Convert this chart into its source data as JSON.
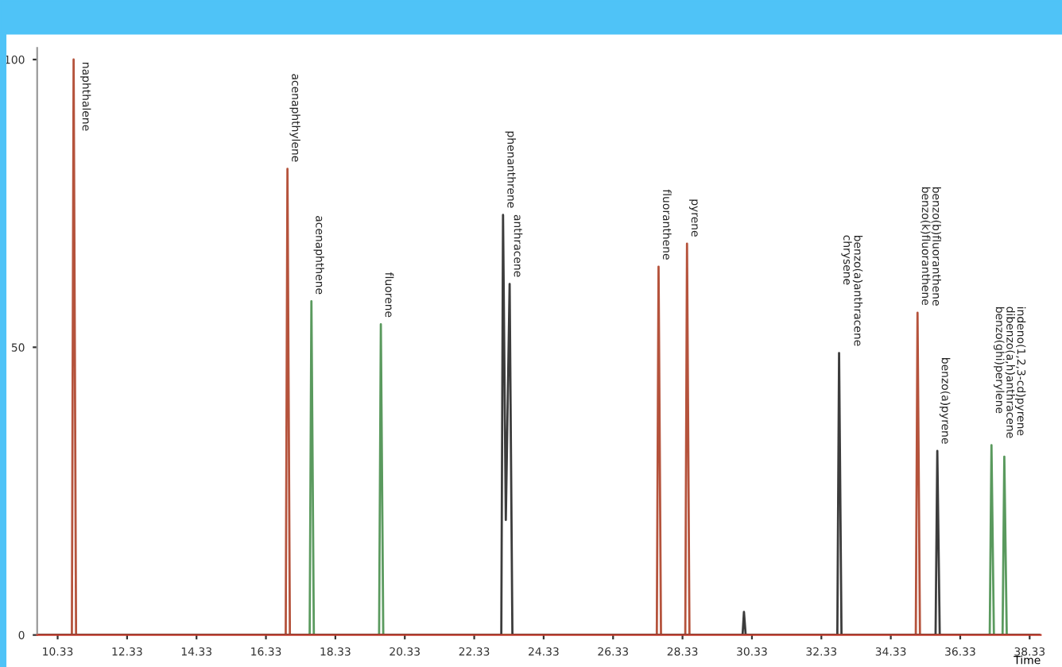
{
  "chart_data": {
    "type": "line",
    "xlabel": "Time",
    "series": [
      {
        "color": "#b5533c",
        "x": [
          9.8,
          10.74,
          10.79,
          10.86,
          16.9,
          16.95,
          17.02,
          27.59,
          27.64,
          27.71,
          28.41,
          28.46,
          28.53,
          35.05,
          35.1,
          35.17,
          38.6
        ],
        "values": [
          0,
          0,
          100,
          0,
          0,
          81,
          0,
          0,
          64,
          0,
          0,
          68,
          0,
          0,
          56,
          0,
          0
        ]
      },
      {
        "color": "#5a9a5e",
        "x": [
          9.8,
          17.59,
          17.64,
          17.71,
          19.59,
          19.64,
          19.71,
          37.18,
          37.23,
          37.3,
          37.55,
          37.6,
          37.67,
          38.6
        ],
        "values": [
          0,
          0,
          58,
          0,
          0,
          54,
          0,
          0,
          33,
          0,
          0,
          31,
          0,
          0
        ]
      },
      {
        "color": "#3c3c3c",
        "x": [
          9.8,
          23.11,
          23.16,
          23.24,
          23.35,
          23.43,
          30.06,
          30.1,
          30.15,
          32.79,
          32.84,
          32.91,
          35.62,
          35.67,
          35.74,
          38.6
        ],
        "values": [
          0,
          0,
          73,
          20,
          61,
          0,
          0,
          4,
          0,
          0,
          49,
          0,
          0,
          32,
          0,
          0
        ]
      }
    ],
    "annotations": [
      {
        "text": "naphthalene",
        "x": 10.79,
        "y": 100
      },
      {
        "text": "acenaphthylene",
        "x": 16.95,
        "y": 81
      },
      {
        "text": "acenaphthene",
        "x": 17.64,
        "y": 58
      },
      {
        "text": "fluorene",
        "x": 19.64,
        "y": 54
      },
      {
        "text": "phenanthrene",
        "x": 23.16,
        "y": 73
      },
      {
        "text": "anthracene",
        "x": 23.35,
        "y": 61
      },
      {
        "text": "fluoranthene",
        "x": 27.64,
        "y": 64
      },
      {
        "text": "pyrene",
        "x": 28.46,
        "y": 68
      },
      {
        "text": "benzo(a)anthracene\nchrysene",
        "x": 32.84,
        "y": 49
      },
      {
        "text": "benzo(b)fluoranthene\nbenzo(k)fluoranthene",
        "x": 35.1,
        "y": 56
      },
      {
        "text": "benzo(a)pyrene",
        "x": 35.67,
        "y": 32
      },
      {
        "text": "indeno(1,2,3-cd)pyrene\ndibenzo(a,h)anthracene\nbenzo(ghi)perylene",
        "x": 37.23,
        "y": 33
      }
    ],
    "xlim": [
      9.74,
      38.65
    ],
    "xticks": [
      10.33,
      12.33,
      14.33,
      16.33,
      18.33,
      20.33,
      22.33,
      24.33,
      26.33,
      28.33,
      30.33,
      32.33,
      34.33,
      36.33,
      38.33
    ],
    "ylim": [
      0,
      102
    ],
    "yticks": [
      0,
      50,
      100
    ],
    "grid": false,
    "legend": false,
    "marker": "none",
    "line_style": "solid"
  }
}
